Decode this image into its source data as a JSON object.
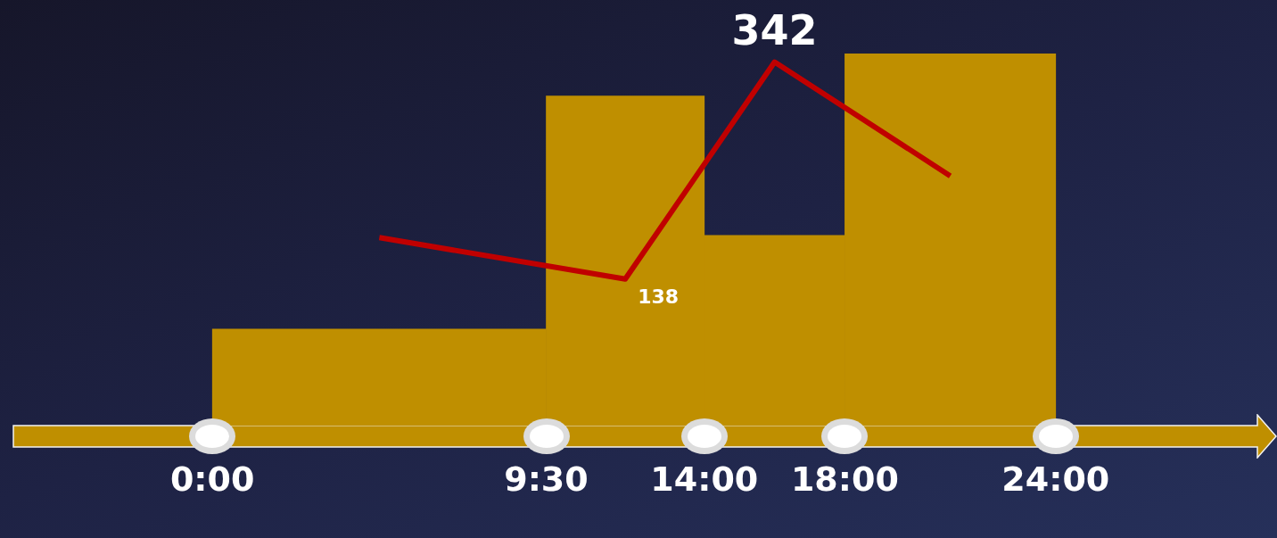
{
  "chart_data": {
    "type": "histogram",
    "bins": [
      0,
      9.5,
      14,
      18,
      24
    ],
    "values": [
      91,
      310,
      179,
      350
    ],
    "color": "#bf8f00",
    "series": [
      {
        "type": "line",
        "color": "#c00000",
        "x": [
          4.75,
          11.75,
          16,
          21
        ],
        "values": [
          177,
          138,
          342,
          235
        ],
        "value_labels": [
          null,
          "138",
          "342",
          null
        ]
      }
    ],
    "xlim": [
      0,
      24
    ],
    "xticks": [
      {
        "value": 0,
        "label": "0:00"
      },
      {
        "value": 9.5,
        "label": "9:30"
      },
      {
        "value": 14,
        "label": "14:00"
      },
      {
        "value": 18,
        "label": "18:00"
      },
      {
        "value": 24,
        "label": "24:00"
      }
    ],
    "tick_labels": "x",
    "grid": false,
    "legend": false,
    "marker": "none",
    "line_style": "solid"
  }
}
